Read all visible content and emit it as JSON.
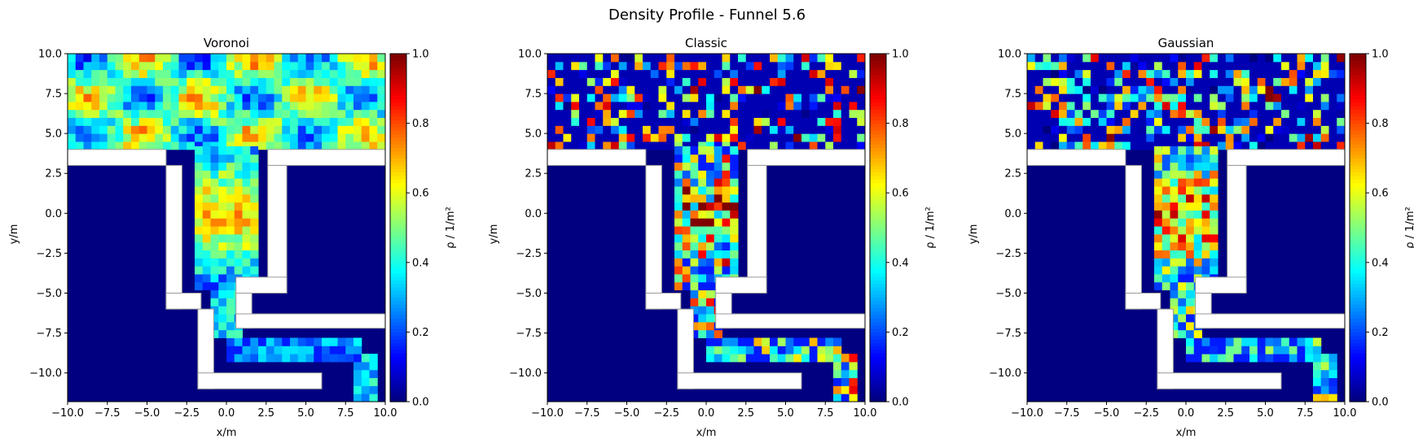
{
  "figure": {
    "suptitle": "Density Profile - Funnel  5.6"
  },
  "chart_data": [
    {
      "type": "heatmap",
      "title": "Voronoi",
      "xlabel": "x/m",
      "ylabel": "y/m",
      "xlim": [
        -10,
        10
      ],
      "ylim": [
        -11.8,
        10
      ],
      "xticks": [
        "−10.0",
        "−7.5",
        "−5.0",
        "−2.5",
        "0.0",
        "2.5",
        "5.0",
        "7.5",
        "10.0"
      ],
      "yticks": [
        "−10.0",
        "−7.5",
        "−5.0",
        "−2.5",
        "0.0",
        "2.5",
        "5.0",
        "7.5",
        "10.0"
      ],
      "colorbar": {
        "label": "ρ / 1/m²",
        "min": 0,
        "max": 1,
        "ticks": [
          "0.0",
          "0.2",
          "0.4",
          "0.6",
          "0.8",
          "1.0"
        ],
        "colormap": "jet"
      },
      "method": "smooth",
      "geometry_color": "#ffffff"
    },
    {
      "type": "heatmap",
      "title": "Classic",
      "xlabel": "x/m",
      "ylabel": "y/m",
      "xlim": [
        -10,
        10
      ],
      "ylim": [
        -11.8,
        10
      ],
      "xticks": [
        "−10.0",
        "−7.5",
        "−5.0",
        "−2.5",
        "0.0",
        "2.5",
        "5.0",
        "7.5",
        "10.0"
      ],
      "yticks": [
        "−10.0",
        "−7.5",
        "−5.0",
        "−2.5",
        "0.0",
        "2.5",
        "5.0",
        "7.5",
        "10.0"
      ],
      "colorbar": {
        "label": "ρ / 1/m²",
        "min": 0,
        "max": 1,
        "ticks": [
          "0.0",
          "0.2",
          "0.4",
          "0.6",
          "0.8",
          "1.0"
        ],
        "colormap": "jet"
      },
      "method": "noisy",
      "geometry_color": "#ffffff"
    },
    {
      "type": "heatmap",
      "title": "Gaussian",
      "xlabel": "x/m",
      "ylabel": "y/m",
      "xlim": [
        -10,
        10
      ],
      "ylim": [
        -11.8,
        10
      ],
      "xticks": [
        "−10.0",
        "−7.5",
        "−5.0",
        "−2.5",
        "0.0",
        "2.5",
        "5.0",
        "7.5",
        "10.0"
      ],
      "yticks": [
        "−10.0",
        "−7.5",
        "−5.0",
        "−2.5",
        "0.0",
        "2.5",
        "5.0",
        "7.5",
        "10.0"
      ],
      "colorbar": {
        "label": "ρ / 1/m²",
        "min": 0,
        "max": 1,
        "ticks": [
          "0.0",
          "0.2",
          "0.4",
          "0.6",
          "0.8",
          "1.0"
        ],
        "colormap": "jet"
      },
      "method": "medium",
      "geometry_color": "#ffffff"
    }
  ]
}
